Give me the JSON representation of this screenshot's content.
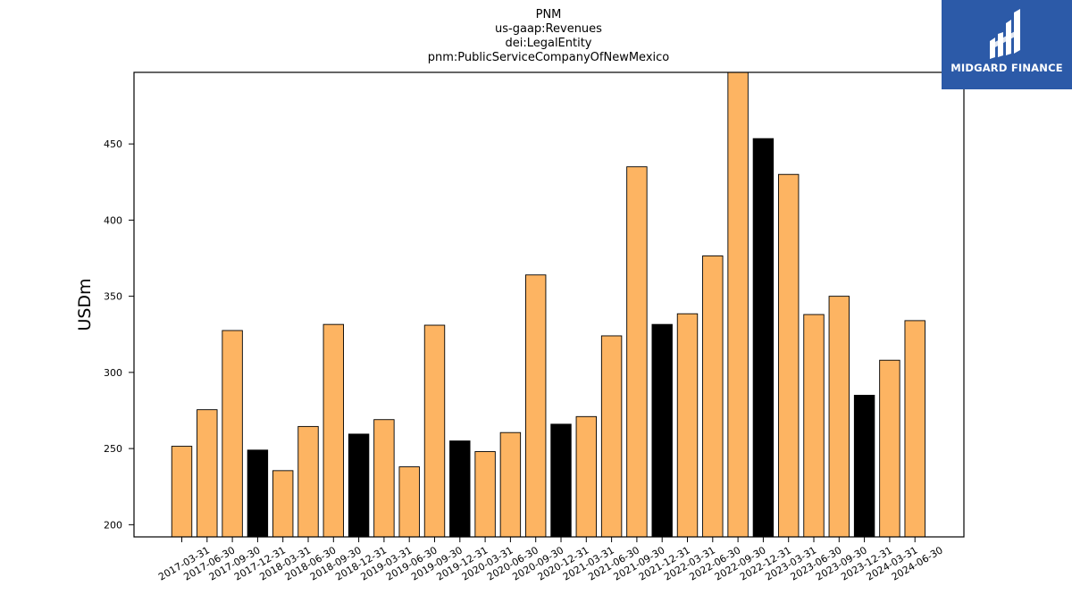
{
  "chart_data": {
    "type": "bar",
    "title_lines": [
      "PNM",
      "us-gaap:Revenues",
      "dei:LegalEntity",
      "pnm:PublicServiceCompanyOfNewMexico"
    ],
    "ylabel": "USDm",
    "xlabel": "",
    "ylim": [
      192,
      497
    ],
    "yticks": [
      200,
      250,
      300,
      350,
      400,
      450
    ],
    "categories": [
      "2017-03-31",
      "2017-06-30",
      "2017-09-30",
      "2017-12-31",
      "2018-03-31",
      "2018-06-30",
      "2018-09-30",
      "2018-12-31",
      "2019-03-31",
      "2019-06-30",
      "2019-09-30",
      "2019-12-31",
      "2020-03-31",
      "2020-06-30",
      "2020-09-30",
      "2020-12-31",
      "2021-03-31",
      "2021-06-30",
      "2021-09-30",
      "2021-12-31",
      "2022-03-31",
      "2022-06-30",
      "2022-09-30",
      "2022-12-31",
      "2023-03-31",
      "2023-06-30",
      "2023-09-30",
      "2023-12-31",
      "2024-03-31",
      "2024-06-30"
    ],
    "values": [
      251.5,
      275.5,
      327.5,
      249,
      235.5,
      264.5,
      331.5,
      259.5,
      269,
      238,
      331,
      255,
      248,
      260.5,
      364,
      266,
      271,
      324,
      435,
      331.5,
      338.5,
      376.5,
      500,
      453.5,
      430,
      338,
      350,
      285,
      308,
      334
    ],
    "bar_colors": [
      "#fdb462",
      "#fdb462",
      "#fdb462",
      "#000000",
      "#fdb462",
      "#fdb462",
      "#fdb462",
      "#000000",
      "#fdb462",
      "#fdb462",
      "#fdb462",
      "#000000",
      "#fdb462",
      "#fdb462",
      "#fdb462",
      "#000000",
      "#fdb462",
      "#fdb462",
      "#fdb462",
      "#000000",
      "#fdb462",
      "#fdb462",
      "#fdb462",
      "#000000",
      "#fdb462",
      "#fdb462",
      "#fdb462",
      "#000000",
      "#fdb462",
      "#fdb462"
    ],
    "colors": {
      "quarter": "#fdb462",
      "year_end": "#000000",
      "edge": "#000000"
    },
    "grid": false,
    "legend": "none"
  },
  "logo": {
    "text": "MIDGARD FINANCE",
    "background": "#2c5aa8"
  }
}
